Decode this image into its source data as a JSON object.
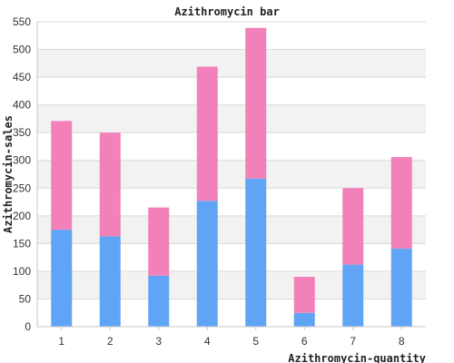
{
  "chart_data": {
    "type": "bar",
    "stacked": true,
    "title": "Azithromycin bar",
    "xlabel": "Azithromycin-quantity",
    "ylabel": "Azithromycin-sales",
    "categories": [
      "1",
      "2",
      "3",
      "4",
      "5",
      "6",
      "7",
      "8"
    ],
    "ylim": [
      0,
      550
    ],
    "yticks": [
      0,
      50,
      100,
      150,
      200,
      250,
      300,
      350,
      400,
      450,
      500,
      550
    ],
    "grid": true,
    "series": [
      {
        "values": [
          175,
          163,
          92,
          227,
          267,
          25,
          112,
          141
        ],
        "color": "#60a5f5"
      },
      {
        "values": [
          196,
          187,
          123,
          242,
          272,
          65,
          138,
          165
        ],
        "color": "#f281b9"
      }
    ]
  },
  "colors": {
    "band": "#f2f2f2",
    "grid": "#d9d9d9",
    "axis": "#c8c8c8"
  }
}
